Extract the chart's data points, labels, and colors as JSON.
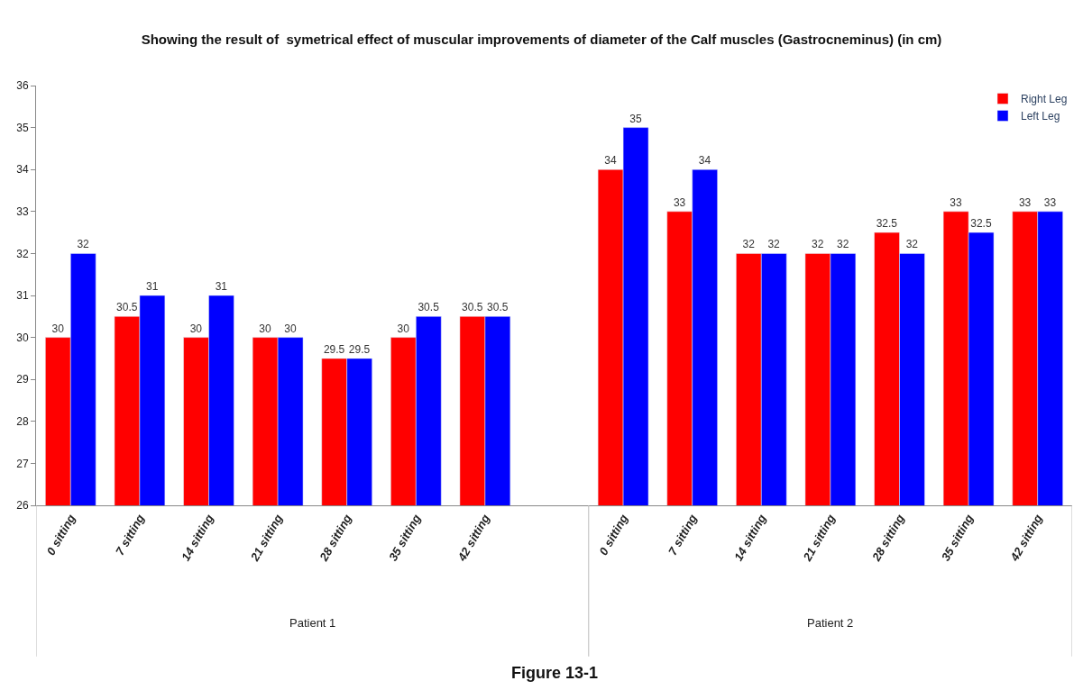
{
  "chart_data": {
    "type": "bar",
    "title": "Showing the result of  symetrical effect of muscular improvements of diameter of the Calf muscles (Gastrocneminus) (in cm)",
    "categories": [
      "0 sitting",
      "7 sitting",
      "14 sitting",
      "21 sitting",
      "28 sitting",
      "35 sitting",
      "42 sitting",
      null,
      "0 sitting",
      "7 sitting",
      "14 sitting",
      "21 sitting",
      "28 sitting",
      "35 sitting",
      "42 sitting"
    ],
    "series": [
      {
        "name": "Right Leg",
        "color": "#ff0000",
        "values": [
          30,
          30.5,
          30,
          30,
          29.5,
          30,
          30.5,
          null,
          34,
          33,
          32,
          32,
          32.5,
          33,
          33
        ]
      },
      {
        "name": "Left Leg",
        "color": "#0000ff",
        "values": [
          32,
          31,
          31,
          30,
          29.5,
          30.5,
          30.5,
          null,
          35,
          34,
          32,
          32,
          32,
          32.5,
          33
        ]
      }
    ],
    "ylim": [
      26,
      36
    ],
    "yticks": [
      26,
      27,
      28,
      29,
      30,
      31,
      32,
      33,
      34,
      35,
      36
    ],
    "data_labels": true,
    "legend": "top right",
    "annotations": [
      "Patient 1",
      "Patient 2",
      "Figure 13-1"
    ]
  }
}
